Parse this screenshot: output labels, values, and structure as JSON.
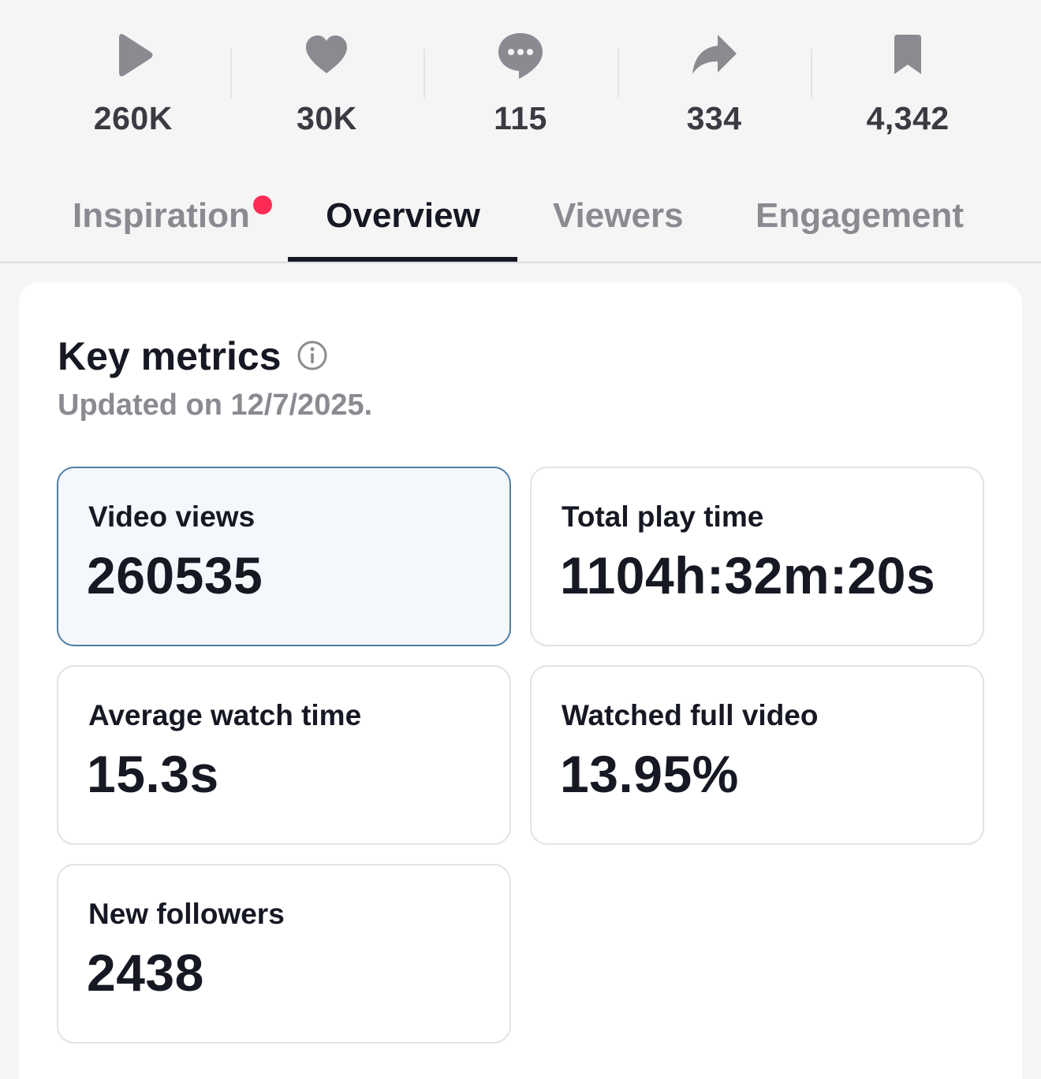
{
  "stats": [
    {
      "icon": "play-icon",
      "value": "260K"
    },
    {
      "icon": "heart-icon",
      "value": "30K"
    },
    {
      "icon": "comment-icon",
      "value": "115"
    },
    {
      "icon": "share-icon",
      "value": "334"
    },
    {
      "icon": "bookmark-icon",
      "value": "4,342"
    }
  ],
  "tabs": [
    {
      "label": "Inspiration",
      "has_notification_dot": true
    },
    {
      "label": "Overview",
      "active": true
    },
    {
      "label": "Viewers"
    },
    {
      "label": "Engagement"
    }
  ],
  "key_metrics": {
    "title": "Key metrics",
    "updated": "Updated on 12/7/2025.",
    "metrics": [
      {
        "label": "Video views",
        "value": "260535",
        "selected": true
      },
      {
        "label": "Total play time",
        "value": "1104h:32m:20s"
      },
      {
        "label": "Average watch time",
        "value": "15.3s"
      },
      {
        "label": "Watched full video",
        "value": "13.95%"
      },
      {
        "label": "New followers",
        "value": "2438"
      }
    ]
  },
  "colors": {
    "background": "#f5f5f5",
    "card": "#ffffff",
    "text_primary": "#161823",
    "text_secondary": "#8a8b91",
    "icon_gray": "#8a8b91",
    "notification_dot": "#fe2c55",
    "selected_border": "#4e7fa6",
    "selected_fill": "#f4f8fd"
  }
}
